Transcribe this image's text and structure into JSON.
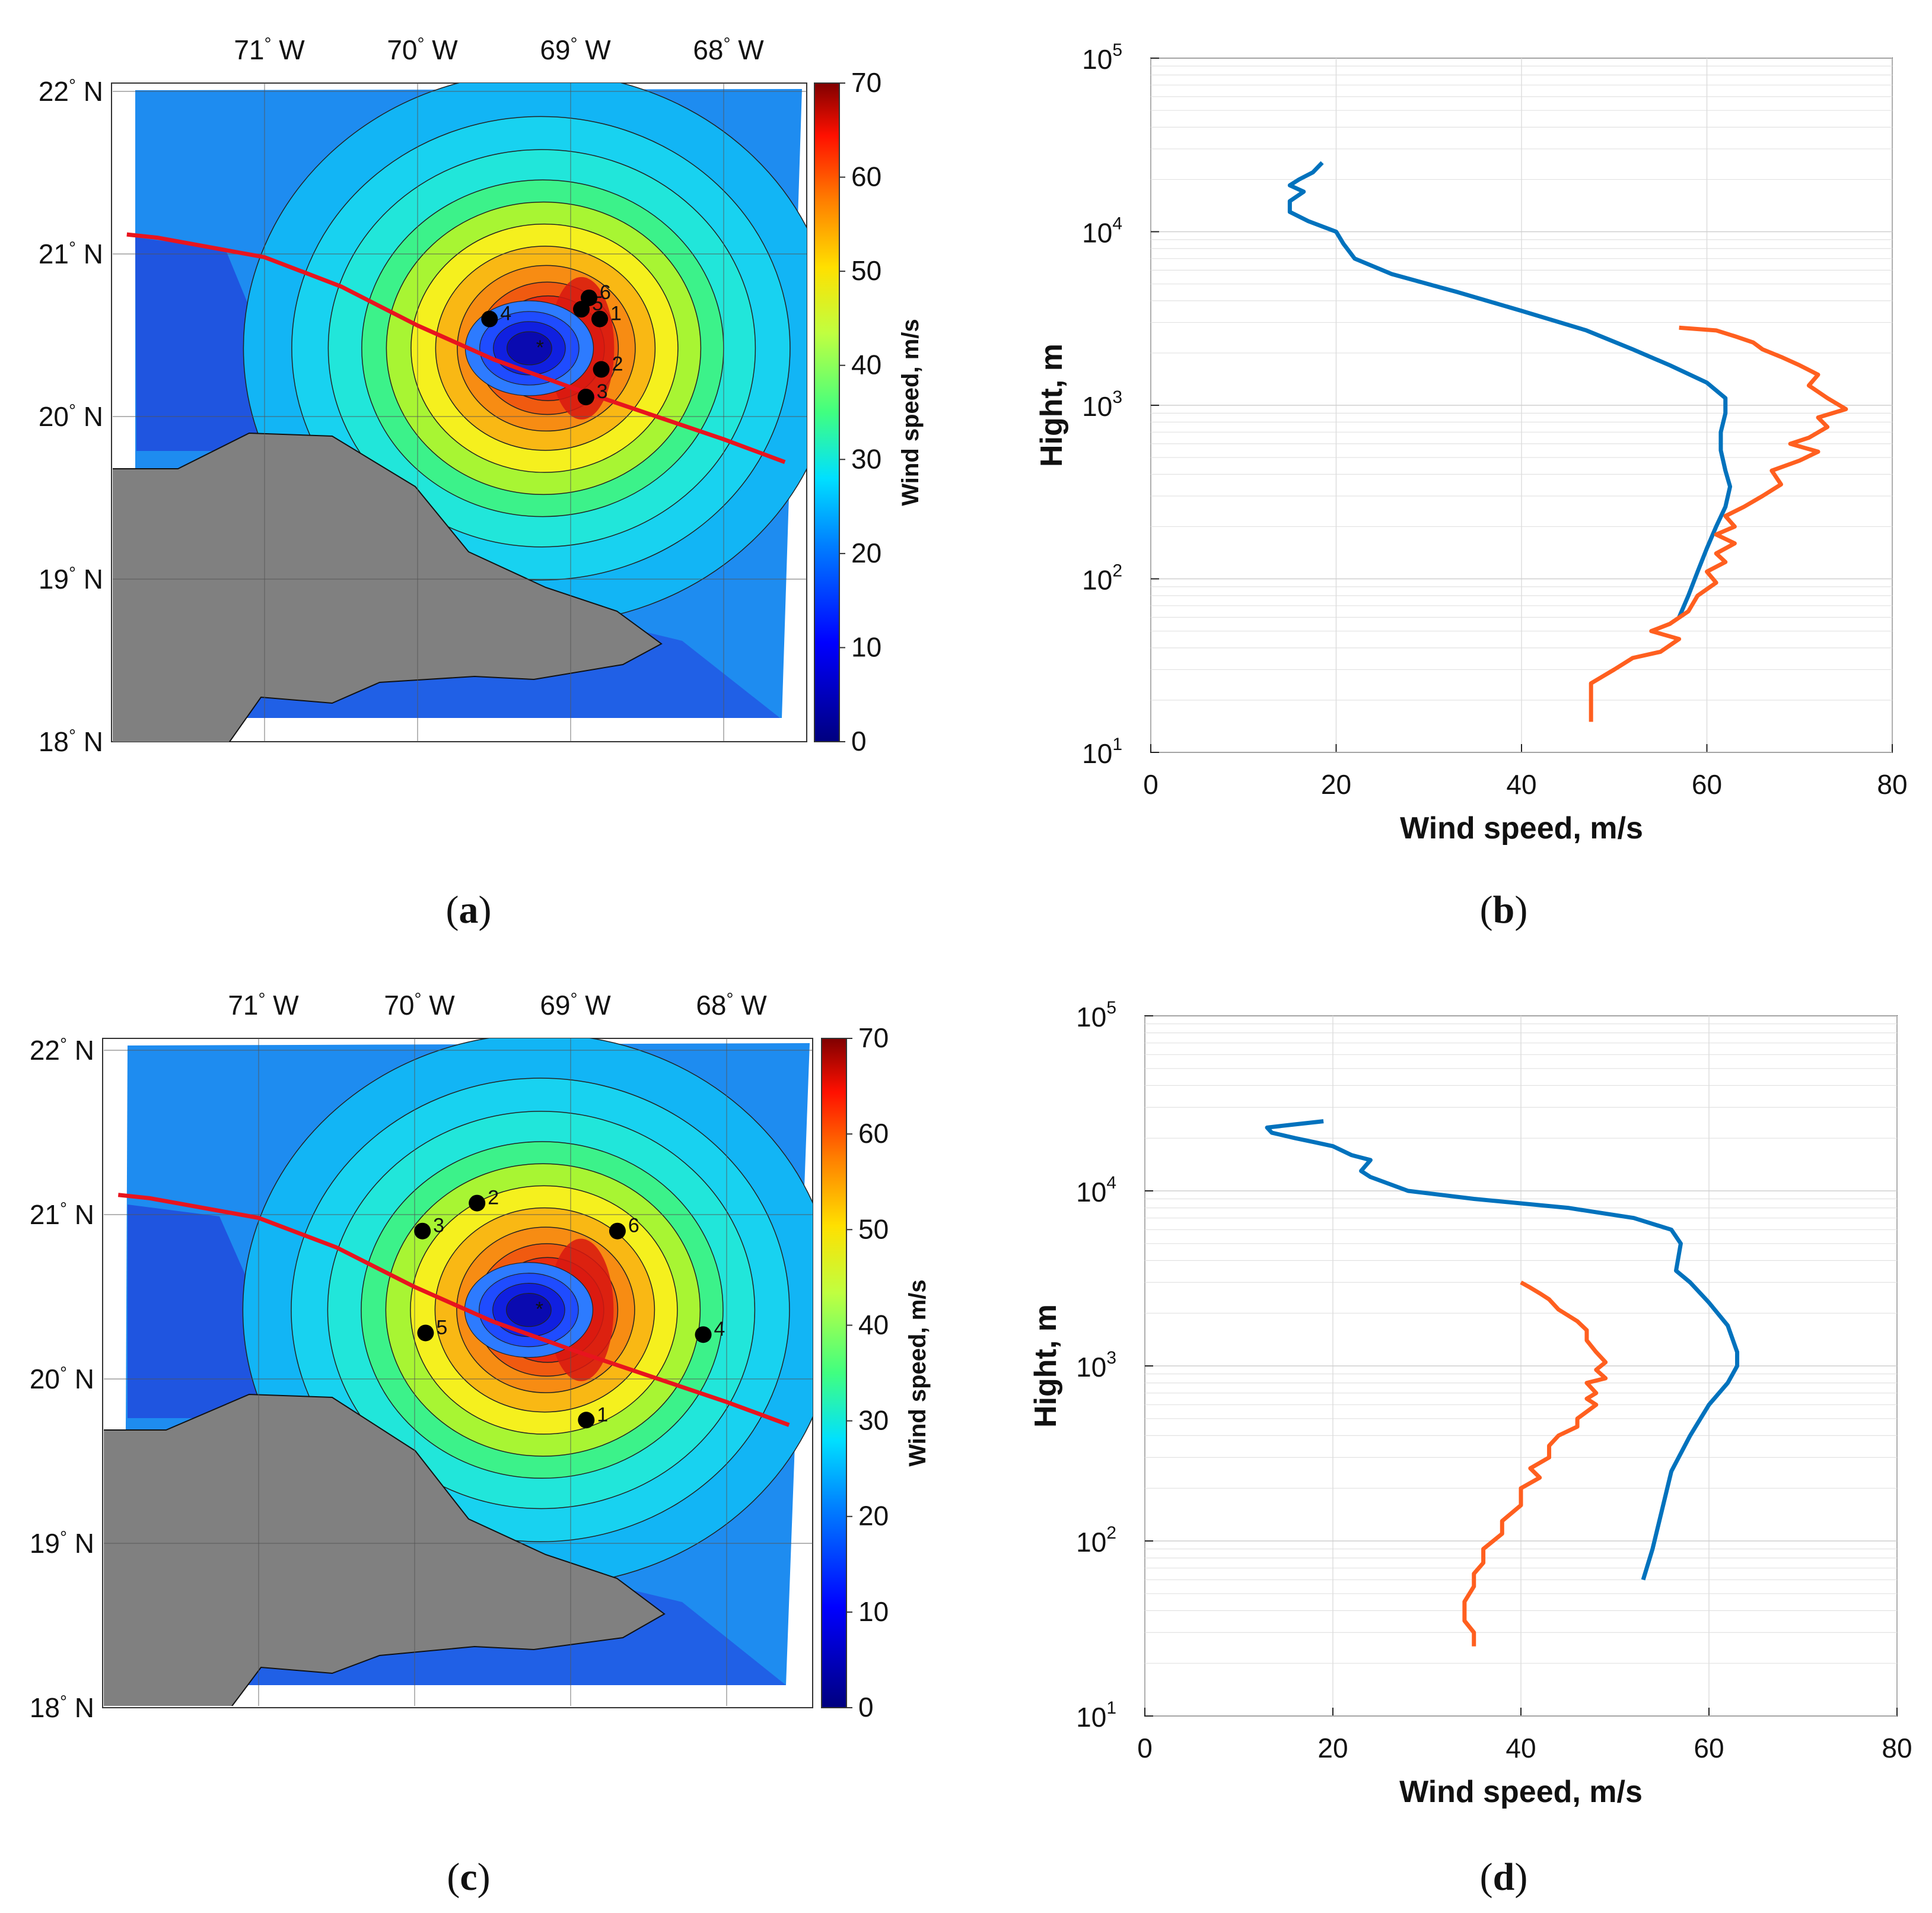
{
  "chart_data": [
    {
      "id": "a",
      "panel_label": "a",
      "type": "heatmap",
      "title": "",
      "lon_ticks": [
        {
          "deg": "71",
          "hem": "W"
        },
        {
          "deg": "70",
          "hem": "W"
        },
        {
          "deg": "69",
          "hem": "W"
        },
        {
          "deg": "68",
          "hem": "W"
        }
      ],
      "lat_ticks": [
        {
          "deg": "22",
          "hem": "N"
        },
        {
          "deg": "21",
          "hem": "N"
        },
        {
          "deg": "20",
          "hem": "N"
        },
        {
          "deg": "19",
          "hem": "N"
        },
        {
          "deg": "18",
          "hem": "N"
        }
      ],
      "colorbar": {
        "label": "Wind speed, m/s",
        "ticks": [
          "0",
          "10",
          "20",
          "30",
          "40",
          "50",
          "60",
          "70"
        ],
        "range": [
          0,
          70
        ]
      },
      "center": {
        "lon": -69.2,
        "lat": 20.42
      },
      "track": [
        [
          -71.9,
          21.12
        ],
        [
          -71.7,
          21.1
        ],
        [
          -71,
          20.98
        ],
        [
          -70.5,
          20.8
        ],
        [
          -70,
          20.56
        ],
        [
          -69.5,
          20.35
        ],
        [
          -69,
          20.18
        ],
        [
          -68.5,
          20.02
        ],
        [
          -68,
          19.86
        ],
        [
          -67.6,
          19.72
        ]
      ],
      "points": [
        {
          "label": "1",
          "lon": -68.81,
          "lat": 20.6
        },
        {
          "label": "2",
          "lon": -68.8,
          "lat": 20.29
        },
        {
          "label": "3",
          "lon": -68.9,
          "lat": 20.12
        },
        {
          "label": "4",
          "lon": -69.53,
          "lat": 20.6
        },
        {
          "label": "5",
          "lon": -68.93,
          "lat": 20.66
        },
        {
          "label": "6",
          "lon": -68.88,
          "lat": 20.73
        }
      ]
    },
    {
      "id": "b",
      "panel_label": "b",
      "type": "line",
      "title": "",
      "xlabel": "Wind speed, m/s",
      "ylabel": "Hight, m",
      "xlim": [
        0,
        80
      ],
      "ylim": [
        10,
        100000
      ],
      "xscale": "linear",
      "yscale": "log",
      "x_ticks": [
        "0",
        "20",
        "40",
        "60",
        "80"
      ],
      "y_ticks": [
        {
          "base": "10",
          "exp": "1"
        },
        {
          "base": "10",
          "exp": "2"
        },
        {
          "base": "10",
          "exp": "3"
        },
        {
          "base": "10",
          "exp": "4"
        },
        {
          "base": "10",
          "exp": "5"
        }
      ],
      "series": [
        {
          "name": "blue",
          "color": "#0072BD",
          "x": [
            18.5,
            17.5,
            16,
            15,
            16.5,
            15,
            15,
            17,
            20,
            20.8,
            22,
            26,
            33,
            40,
            47,
            52,
            56,
            60,
            62,
            62,
            61.5,
            61.5,
            62,
            62.5,
            62,
            61,
            60,
            59,
            58,
            57
          ],
          "y": [
            25000,
            22000,
            20000,
            18500,
            17000,
            15000,
            13000,
            11500,
            10000,
            8500,
            7000,
            5700,
            4500,
            3500,
            2700,
            2100,
            1700,
            1350,
            1100,
            900,
            700,
            550,
            420,
            340,
            260,
            200,
            150,
            110,
            80,
            60
          ]
        },
        {
          "name": "orange",
          "color": "#FF5F1F",
          "x": [
            47.5,
            47.5,
            47.5,
            50,
            52,
            55,
            57,
            54,
            56,
            58,
            59,
            61,
            60,
            62,
            61,
            63,
            61,
            63,
            62,
            64,
            66,
            68,
            67,
            70,
            72,
            69,
            71,
            73,
            72,
            75,
            73,
            71,
            72,
            70,
            68,
            66,
            65,
            63,
            61,
            57
          ],
          "y": [
            15,
            18,
            25,
            30,
            35,
            38,
            45,
            50,
            55,
            65,
            80,
            95,
            110,
            125,
            140,
            160,
            180,
            200,
            230,
            260,
            300,
            350,
            420,
            480,
            540,
            600,
            650,
            750,
            850,
            950,
            1100,
            1300,
            1500,
            1700,
            1900,
            2100,
            2300,
            2500,
            2700,
            2800
          ]
        }
      ]
    },
    {
      "id": "c",
      "panel_label": "c",
      "type": "heatmap",
      "title": "",
      "lon_ticks": [
        {
          "deg": "71",
          "hem": "W"
        },
        {
          "deg": "70",
          "hem": "W"
        },
        {
          "deg": "69",
          "hem": "W"
        },
        {
          "deg": "68",
          "hem": "W"
        }
      ],
      "lat_ticks": [
        {
          "deg": "22",
          "hem": "N"
        },
        {
          "deg": "21",
          "hem": "N"
        },
        {
          "deg": "20",
          "hem": "N"
        },
        {
          "deg": "19",
          "hem": "N"
        },
        {
          "deg": "18",
          "hem": "N"
        }
      ],
      "colorbar": {
        "label": "Wind speed, m/s",
        "ticks": [
          "0",
          "10",
          "20",
          "30",
          "40",
          "50",
          "60",
          "70"
        ],
        "range": [
          0,
          70
        ]
      },
      "center": {
        "lon": -69.2,
        "lat": 20.42
      },
      "track": [
        [
          -71.9,
          21.12
        ],
        [
          -71.7,
          21.1
        ],
        [
          -71,
          20.98
        ],
        [
          -70.5,
          20.8
        ],
        [
          -70,
          20.56
        ],
        [
          -69.5,
          20.35
        ],
        [
          -69,
          20.18
        ],
        [
          -68.5,
          20.02
        ],
        [
          -68,
          19.86
        ],
        [
          -67.6,
          19.72
        ]
      ],
      "points": [
        {
          "label": "1",
          "lon": -68.9,
          "lat": 19.75
        },
        {
          "label": "2",
          "lon": -69.6,
          "lat": 21.07
        },
        {
          "label": "3",
          "lon": -69.95,
          "lat": 20.9
        },
        {
          "label": "4",
          "lon": -68.15,
          "lat": 20.27
        },
        {
          "label": "5",
          "lon": -69.93,
          "lat": 20.28
        },
        {
          "label": "6",
          "lon": -68.7,
          "lat": 20.9
        }
      ]
    },
    {
      "id": "d",
      "panel_label": "d",
      "type": "line",
      "title": "",
      "xlabel": "Wind speed, m/s",
      "ylabel": "Hight, m",
      "xlim": [
        0,
        80
      ],
      "ylim": [
        10,
        100000
      ],
      "xscale": "linear",
      "yscale": "log",
      "x_ticks": [
        "0",
        "20",
        "40",
        "60",
        "80"
      ],
      "y_ticks": [
        {
          "base": "10",
          "exp": "1"
        },
        {
          "base": "10",
          "exp": "2"
        },
        {
          "base": "10",
          "exp": "3"
        },
        {
          "base": "10",
          "exp": "4"
        },
        {
          "base": "10",
          "exp": "5"
        }
      ],
      "series": [
        {
          "name": "blue",
          "color": "#0072BD",
          "x": [
            19,
            16,
            13,
            13.5,
            16,
            18,
            20,
            22,
            24,
            23,
            24,
            28,
            35,
            45,
            52,
            56,
            57,
            56.5,
            58,
            60,
            62,
            63,
            63,
            62,
            60,
            58,
            56,
            55,
            54,
            53
          ],
          "y": [
            25000,
            24000,
            23000,
            21500,
            20000,
            19000,
            18000,
            16000,
            15000,
            13000,
            12000,
            10000,
            9000,
            8000,
            7000,
            6000,
            5000,
            3500,
            3000,
            2300,
            1700,
            1200,
            1000,
            800,
            600,
            400,
            250,
            150,
            90,
            60
          ]
        },
        {
          "name": "orange",
          "color": "#FF5F1F",
          "x": [
            35,
            35,
            34,
            34,
            35,
            35,
            36,
            36,
            38,
            38,
            40,
            40,
            42,
            41,
            43,
            43,
            44,
            46,
            46,
            48,
            47,
            48,
            47,
            49,
            48,
            49,
            48,
            47,
            47,
            46,
            44,
            43,
            42,
            41,
            40
          ],
          "y": [
            25,
            30,
            35,
            45,
            55,
            65,
            75,
            90,
            110,
            130,
            160,
            200,
            230,
            260,
            300,
            350,
            400,
            450,
            500,
            600,
            650,
            700,
            800,
            850,
            950,
            1050,
            1200,
            1400,
            1600,
            1800,
            2100,
            2400,
            2600,
            2800,
            3000
          ]
        }
      ]
    }
  ]
}
